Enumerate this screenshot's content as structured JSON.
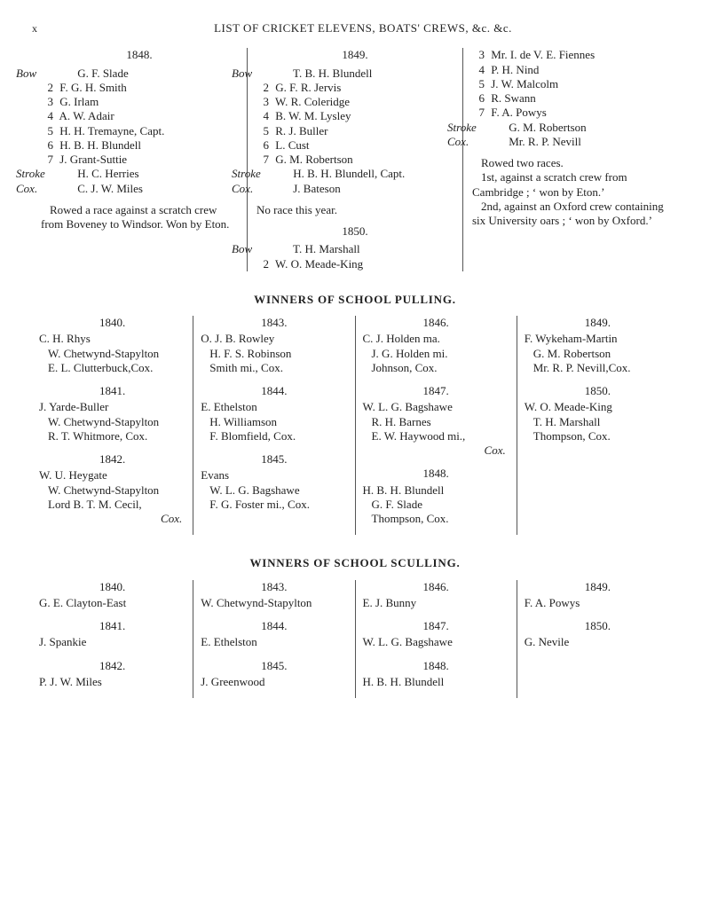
{
  "runninghead": {
    "pagenum": "x",
    "title": "LIST OF CRICKET ELEVENS, BOATS' CREWS, &c. &c."
  },
  "boats": {
    "col1": {
      "year": "1848.",
      "crew": [
        {
          "pos": "Bow",
          "name": "G. F. Slade"
        },
        {
          "num": "2",
          "name": "F. G. H. Smith"
        },
        {
          "num": "3",
          "name": "G. Irlam"
        },
        {
          "num": "4",
          "name": "A. W. Adair"
        },
        {
          "num": "5",
          "name": "H. H. Tremayne, Capt."
        },
        {
          "num": "6",
          "name": "H. B. H. Blundell"
        },
        {
          "num": "7",
          "name": "J. Grant-Suttie"
        },
        {
          "pos": "Stroke",
          "name": "H. C. Herries"
        },
        {
          "pos": "Cox.",
          "name": "C. J. W. Miles"
        }
      ],
      "note": "Rowed a race against a scratch crew from Boveney to Windsor. Won by Eton."
    },
    "col2": {
      "year": "1849.",
      "crew": [
        {
          "pos": "Bow",
          "name": "T. B. H. Blundell"
        },
        {
          "num": "2",
          "name": "G. F. R. Jervis"
        },
        {
          "num": "3",
          "name": "W. R. Coleridge"
        },
        {
          "num": "4",
          "name": "B. W. M. Lysley"
        },
        {
          "num": "5",
          "name": "R. J. Buller"
        },
        {
          "num": "6",
          "name": "L. Cust"
        },
        {
          "num": "7",
          "name": "G. M. Robertson"
        },
        {
          "pos": "Stroke",
          "name": "H. B. H. Blundell, Capt."
        },
        {
          "pos": "Cox.",
          "name": "J. Bateson"
        }
      ],
      "noraces": "No race this year.",
      "year2": "1850.",
      "crew2": [
        {
          "pos": "Bow",
          "name": "T. H. Marshall"
        },
        {
          "num": "2",
          "name": "W. O. Meade-King"
        }
      ]
    },
    "col3": {
      "crew_cont": [
        {
          "num": "3",
          "name": "Mr. I. de V. E. Fiennes"
        },
        {
          "num": "4",
          "name": "P. H. Nind"
        },
        {
          "num": "5",
          "name": "J. W. Malcolm"
        },
        {
          "num": "6",
          "name": "R. Swann"
        },
        {
          "num": "7",
          "name": "F. A. Powys"
        },
        {
          "pos": "Stroke",
          "name": "G. M. Robertson"
        },
        {
          "pos": "Cox.",
          "name": "Mr. R. P. Nevill"
        }
      ],
      "note1": "Rowed two races.",
      "note2": "1st, against a scratch crew from Cambridge ; ‘ won by Eton.’",
      "note3": "2nd, against an Oxford crew containing six University oars ; ‘ won by Oxford.’"
    }
  },
  "pulling": {
    "heading": "WINNERS OF SCHOOL PULLING.",
    "col1": [
      {
        "yr": "1840.",
        "names": [
          "C. H. Rhys",
          "W. Chetwynd-Stapylton",
          "E. L. Clutterbuck,Cox."
        ]
      },
      {
        "yr": "1841.",
        "names": [
          "J. Yarde-Buller",
          "W. Chetwynd-Stapylton",
          "R. T. Whitmore, Cox."
        ]
      },
      {
        "yr": "1842.",
        "names": [
          "W. U. Heygate",
          "W. Chetwynd-Stapylton",
          "Lord B. T. M. Cecil,"
        ],
        "cox": "Cox."
      }
    ],
    "col2": [
      {
        "yr": "1843.",
        "names": [
          "O. J. B. Rowley",
          "H. F. S. Robinson",
          "Smith mi., Cox."
        ]
      },
      {
        "yr": "1844.",
        "names": [
          "E. Ethelston",
          "H. Williamson",
          "F. Blomfield, Cox."
        ]
      },
      {
        "yr": "1845.",
        "names": [
          "Evans",
          "W. L. G. Bagshawe",
          "F. G. Foster mi., Cox."
        ]
      }
    ],
    "col3": [
      {
        "yr": "1846.",
        "names": [
          "C. J. Holden ma.",
          "J. G. Holden mi.",
          "Johnson, Cox."
        ]
      },
      {
        "yr": "1847.",
        "names": [
          "W. L. G. Bagshawe",
          "R. H. Barnes",
          "E. W. Haywood mi.,"
        ],
        "cox": "Cox."
      },
      {
        "yr": "1848.",
        "names": [
          "H. B. H. Blundell",
          "G. F. Slade",
          "Thompson, Cox."
        ]
      }
    ],
    "col4": [
      {
        "yr": "1849.",
        "names": [
          "F. Wykeham-Martin",
          "G. M. Robertson",
          "Mr. R. P. Nevill,Cox."
        ]
      },
      {
        "yr": "1850.",
        "names": [
          "W. O. Meade-King",
          "T. H. Marshall",
          "Thompson, Cox."
        ]
      }
    ]
  },
  "sculling": {
    "heading": "WINNERS OF SCHOOL SCULLING.",
    "col1": [
      {
        "yr": "1840.",
        "names": [
          "G. E. Clayton-East"
        ]
      },
      {
        "yr": "1841.",
        "names": [
          "J. Spankie"
        ]
      },
      {
        "yr": "1842.",
        "names": [
          "P. J. W. Miles"
        ]
      }
    ],
    "col2": [
      {
        "yr": "1843.",
        "names": [
          "W. Chetwynd-Stapylton"
        ]
      },
      {
        "yr": "1844.",
        "names": [
          "E. Ethelston"
        ]
      },
      {
        "yr": "1845.",
        "names": [
          "J. Greenwood"
        ]
      }
    ],
    "col3": [
      {
        "yr": "1846.",
        "names": [
          "E. J. Bunny"
        ]
      },
      {
        "yr": "1847.",
        "names": [
          "W. L. G. Bagshawe"
        ]
      },
      {
        "yr": "1848.",
        "names": [
          "H. B. H. Blundell"
        ]
      }
    ],
    "col4": [
      {
        "yr": "1849.",
        "names": [
          "F. A. Powys"
        ]
      },
      {
        "yr": "1850.",
        "names": [
          "G. Nevile"
        ]
      }
    ]
  }
}
